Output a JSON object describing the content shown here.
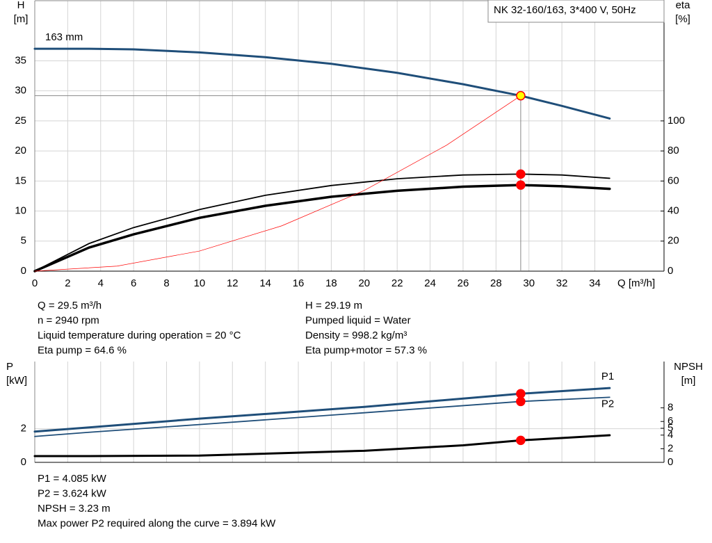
{
  "title": "NK 32-160/163, 3*400 V, 50Hz",
  "chart_data": [
    {
      "type": "line",
      "xlabel": "Q [m³/h]",
      "ylabel": [
        "H",
        "[m]"
      ],
      "y2label": [
        "eta",
        "[%]"
      ],
      "xlim": [
        0,
        38.2
      ],
      "xticks": [
        0,
        2,
        4,
        6,
        8,
        10,
        12,
        14,
        16,
        18,
        20,
        22,
        24,
        26,
        28,
        30,
        32,
        34
      ],
      "ylim": [
        0,
        45
      ],
      "yticks": [
        0,
        5,
        10,
        15,
        20,
        25,
        30,
        35
      ],
      "y2lim": [
        0,
        180
      ],
      "y2ticks": [
        0,
        20,
        40,
        60,
        80,
        100
      ],
      "grid": true,
      "operating_x": 29.5,
      "series": [
        {
          "name": "163 mm",
          "color": "#1f4e79",
          "line_width": 3,
          "marker_color": "#ffff00",
          "guides": true,
          "x": [
            0,
            3.3,
            6,
            10,
            14,
            18,
            22,
            26,
            29.5,
            32,
            34.9
          ],
          "values": [
            37.0,
            37.0,
            36.9,
            36.4,
            35.6,
            34.5,
            33.0,
            31.1,
            29.19,
            27.5,
            25.4
          ]
        },
        {
          "color": "#000000",
          "line_width": 1.8,
          "axis": "y2",
          "marker_color": "#ff0000",
          "x": [
            0,
            3.3,
            6,
            10,
            14,
            18,
            22,
            26,
            29.5,
            32,
            34.9
          ],
          "values": [
            0,
            18.4,
            29,
            41,
            50.5,
            57,
            61.5,
            64,
            64.6,
            64,
            61.8
          ]
        },
        {
          "color": "#000000",
          "line_width": 3.5,
          "axis": "y2",
          "marker_color": "#ff0000",
          "x": [
            0,
            3.3,
            6,
            10,
            14,
            18,
            22,
            26,
            29.5,
            32,
            34.9
          ],
          "values": [
            0,
            15.7,
            24.5,
            35.5,
            43.5,
            49.5,
            53.5,
            56.2,
            57.3,
            56.5,
            54.8
          ]
        },
        {
          "color": "#ff0000",
          "line_width": 0.7,
          "x": [
            0,
            5,
            10,
            15,
            20,
            25,
            29.5
          ],
          "values": [
            0,
            0.84,
            3.35,
            7.55,
            13.42,
            20.96,
            29.19
          ]
        }
      ]
    },
    {
      "type": "line",
      "ylabel": [
        "P",
        "[kW]"
      ],
      "y2label": [
        "NPSH",
        "[m]"
      ],
      "xlim": [
        0,
        38.2
      ],
      "ylim": [
        0,
        6
      ],
      "yticks": [
        0,
        2
      ],
      "y2lim": [
        0,
        14.8
      ],
      "y2ticks": [
        0,
        2,
        4,
        5,
        6,
        8
      ],
      "grid": true,
      "operating_x": 29.5,
      "series": [
        {
          "name": "P1",
          "color": "#1f4e79",
          "line_width": 3,
          "marker_color": "#ff0000",
          "x": [
            0,
            3.3,
            10,
            20,
            29.5,
            34.9
          ],
          "values": [
            1.83,
            2.08,
            2.6,
            3.3,
            4.085,
            4.42
          ]
        },
        {
          "name": "P2",
          "color": "#1f4e79",
          "line_width": 1.8,
          "marker_color": "#ff0000",
          "x": [
            0,
            3.3,
            10,
            20,
            29.5,
            34.9
          ],
          "values": [
            1.54,
            1.79,
            2.25,
            2.95,
            3.624,
            3.875
          ]
        },
        {
          "color": "#000000",
          "line_width": 3,
          "axis": "y2",
          "marker_color": "#ff0000",
          "x": [
            0,
            3.3,
            10,
            20,
            26,
            29.5,
            34.9
          ],
          "values": [
            0.92,
            0.92,
            1.0,
            1.7,
            2.5,
            3.23,
            3.98
          ]
        }
      ]
    }
  ],
  "info": {
    "left": [
      "Q = 29.5 m³/h",
      "n = 2940 rpm",
      "Liquid temperature during operation = 20 °C",
      "Eta pump = 64.6 %"
    ],
    "right": [
      "H = 29.19 m",
      "Pumped liquid = Water",
      "Density = 998.2 kg/m³",
      "Eta pump+motor = 57.3 %"
    ],
    "bottom": [
      "P1 = 4.085 kW",
      "P2 = 3.624 kW",
      "NPSH = 3.23 m",
      "Max power P2 required along the curve = 3.894 kW"
    ]
  }
}
